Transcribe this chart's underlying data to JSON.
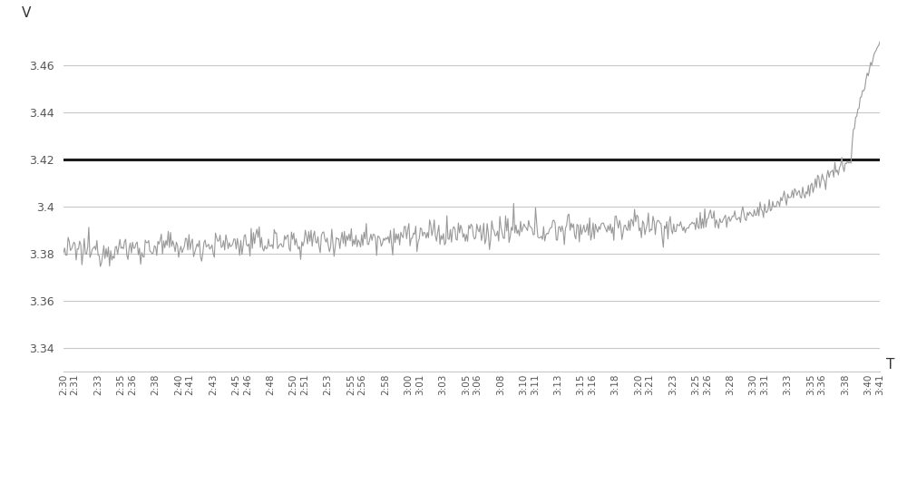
{
  "ylabel": "V",
  "xlabel": "T",
  "threshold_line": 3.42,
  "ylim": [
    3.33,
    3.475
  ],
  "yticks": [
    3.34,
    3.36,
    3.38,
    3.4,
    3.42,
    3.44,
    3.46
  ],
  "line_color": "#999999",
  "threshold_color": "#1a1a1a",
  "background_color": "#ffffff",
  "grid_color": "#c8c8c8",
  "x_tick_labels": [
    "2:30",
    "2:31",
    "2:33",
    "2:35",
    "2:36",
    "2:38",
    "2:40",
    "2:41",
    "2:43",
    "2:45",
    "2:46",
    "2:48",
    "2:50",
    "2:51",
    "2:53",
    "2:55",
    "2:56",
    "2:58",
    "3:00",
    "3:01",
    "3:03",
    "3:05",
    "3:06",
    "3:08",
    "3:10",
    "3:11",
    "3:13",
    "3:15",
    "3:16",
    "3:18",
    "3:20",
    "3:21",
    "3:23",
    "3:25",
    "3:26",
    "3:28",
    "3:30",
    "3:31",
    "3:33",
    "3:35",
    "3:36",
    "3:38",
    "3:40",
    "3:41"
  ],
  "font_size_tick": 7.5,
  "font_size_label": 11,
  "tick_label_color": "#555555"
}
